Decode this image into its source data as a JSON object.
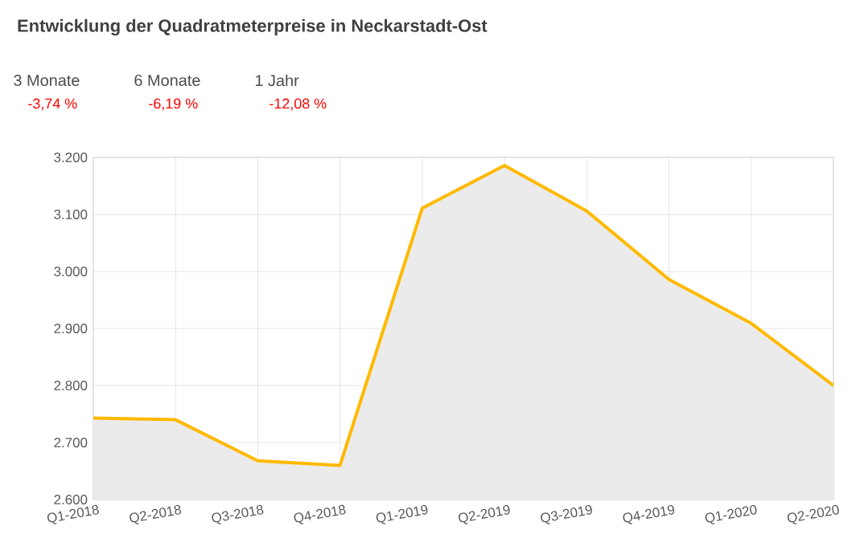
{
  "chart_data": {
    "type": "area",
    "title": "Entwicklung der Quadratmeterpreise in Neckarstadt-Ost",
    "annotations": [
      "3 Monate",
      "-3,74 %",
      "6 Monate",
      "-6,19 %",
      "1 Jahr",
      "-12,08 %"
    ],
    "categories": [
      "Q1-2018",
      "Q2-2018",
      "Q3-2018",
      "Q4-2018",
      "Q1-2019",
      "Q2-2019",
      "Q3-2019",
      "Q4-2019",
      "Q1-2020",
      "Q2-2020"
    ],
    "series": [
      {
        "color": "#ffb900",
        "values": [
          2743,
          2740,
          2668,
          2660,
          3111,
          3186,
          3106,
          2986,
          2909,
          2800
        ]
      }
    ],
    "ylim": [
      2600,
      3200
    ],
    "yticks": [
      {
        "value": 2600,
        "label": "2.600"
      },
      {
        "value": 2700,
        "label": "2.700"
      },
      {
        "value": 2800,
        "label": "2.800"
      },
      {
        "value": 2900,
        "label": "2.900"
      },
      {
        "value": 3000,
        "label": "3.000"
      },
      {
        "value": 3100,
        "label": "3.100"
      },
      {
        "value": 3200,
        "label": "3.200"
      }
    ],
    "grid": true
  }
}
